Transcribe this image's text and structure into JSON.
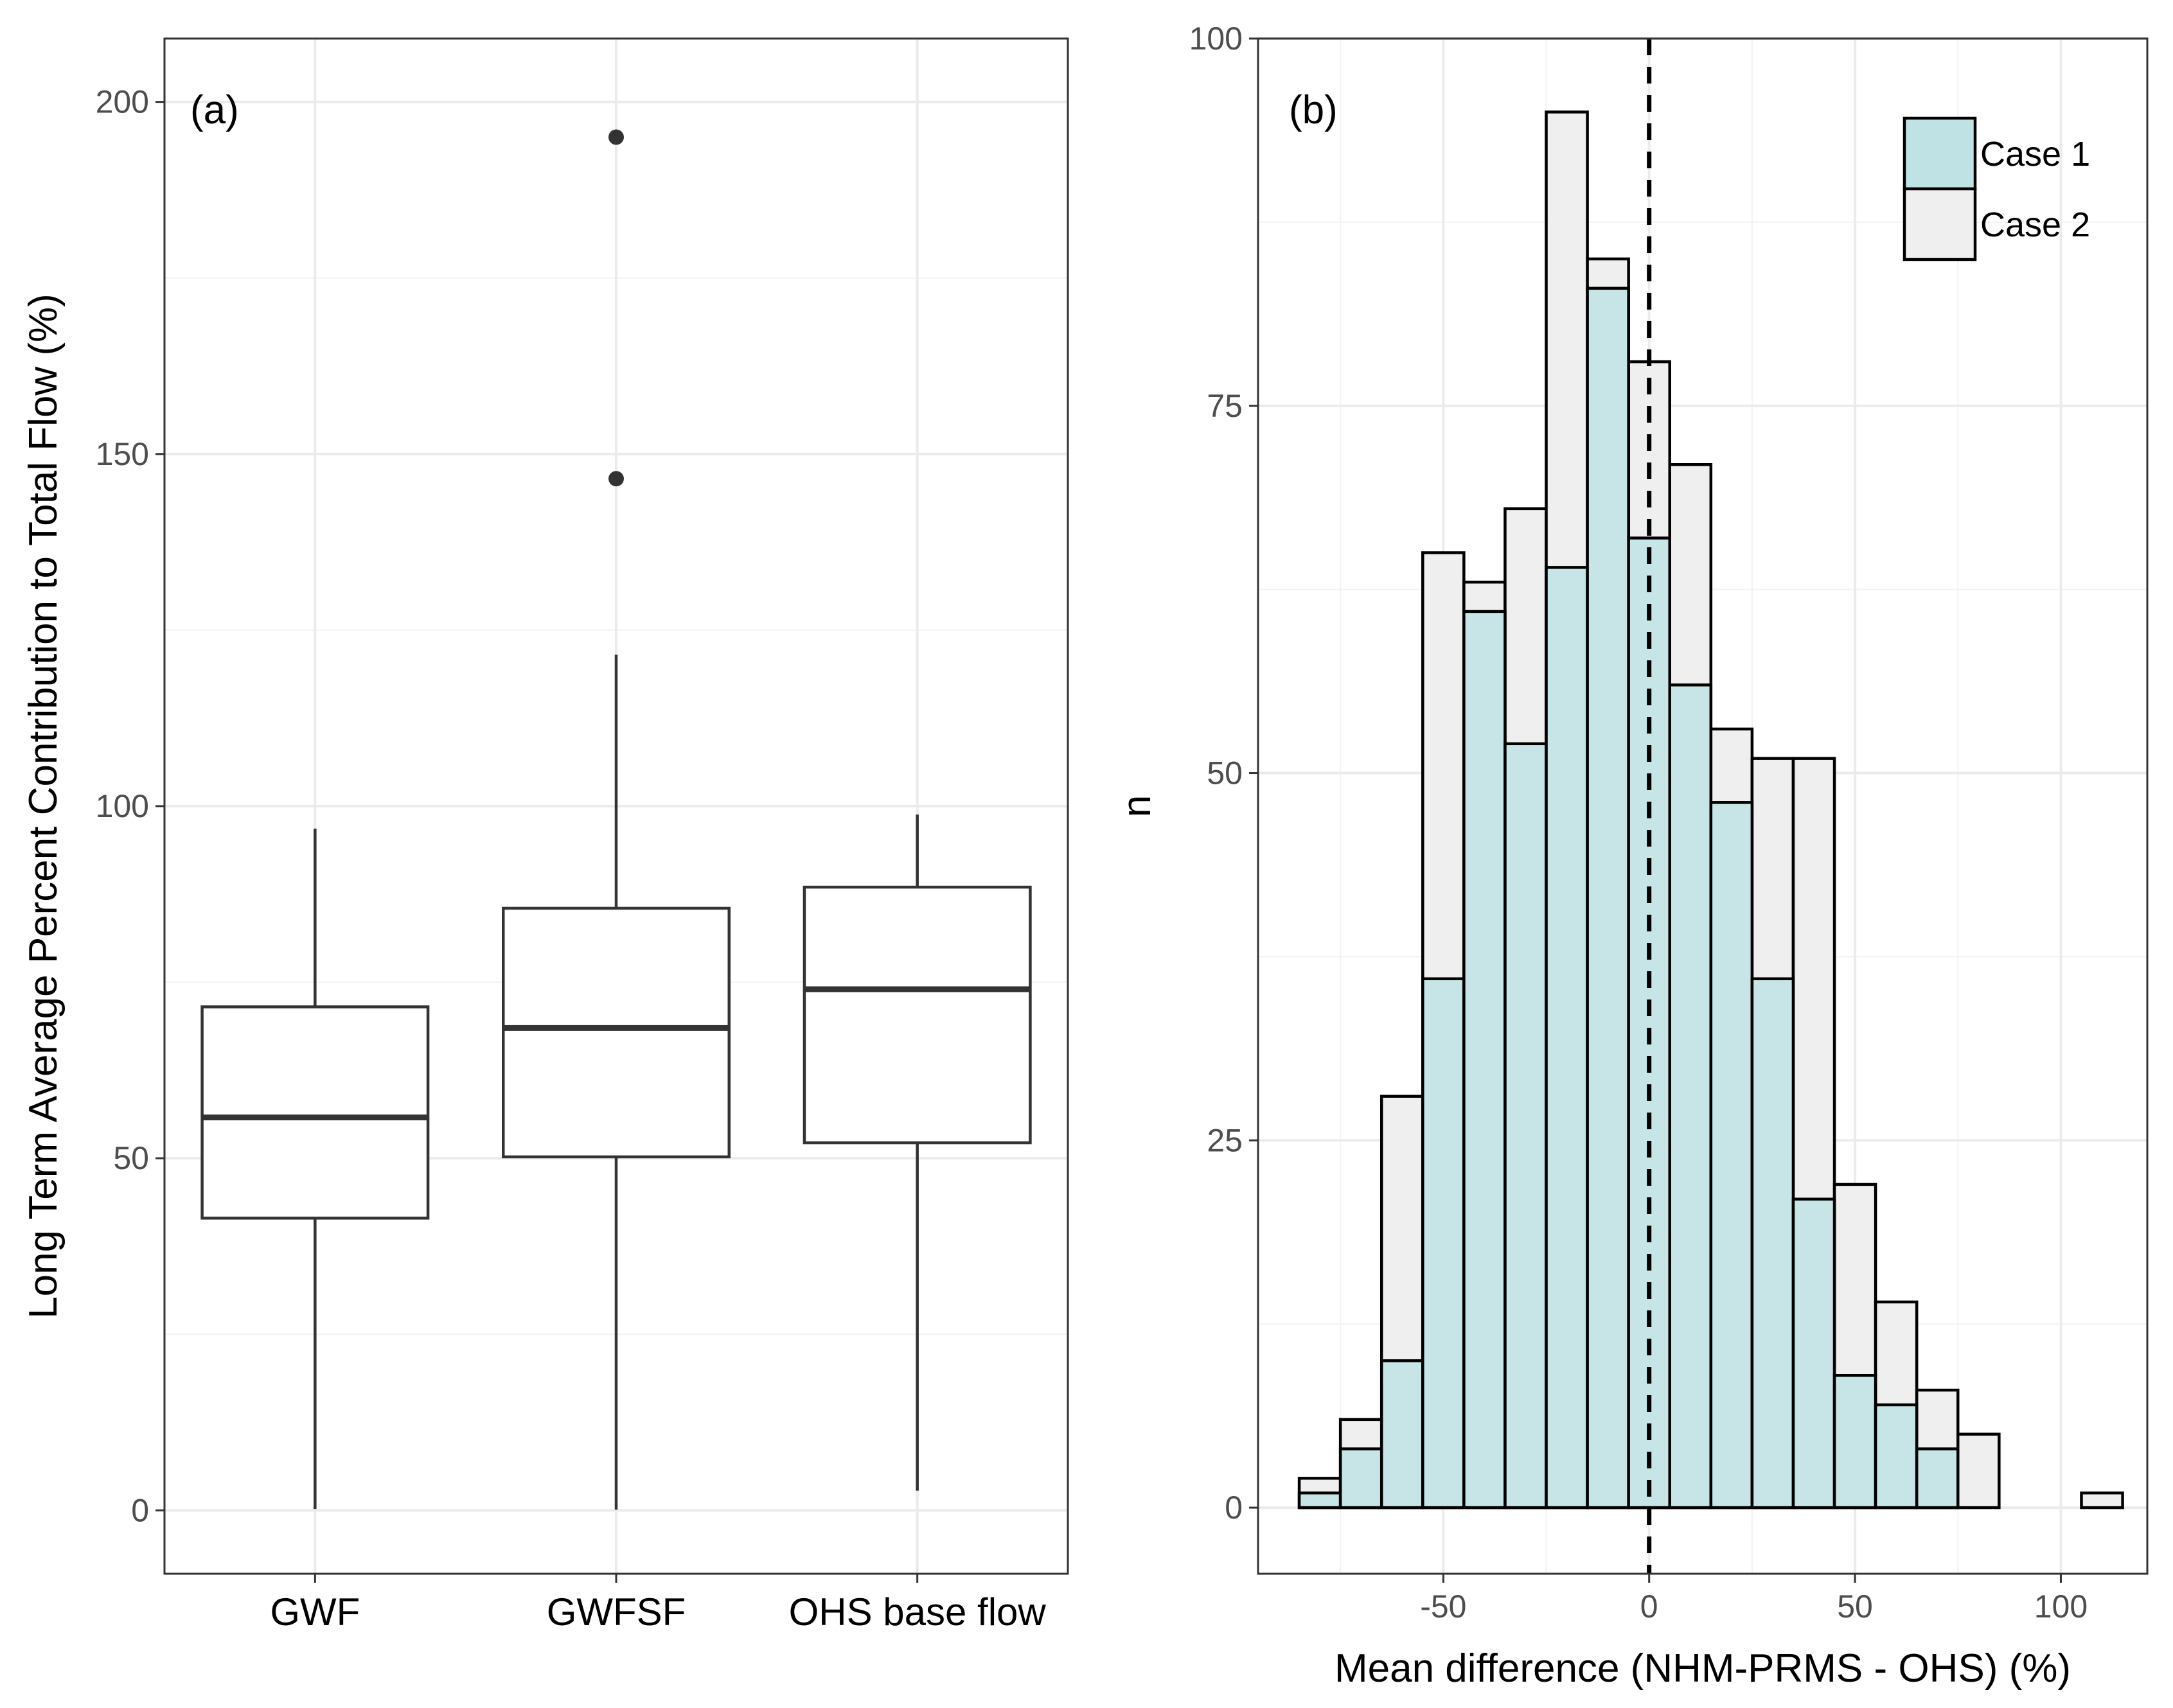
{
  "chart_data": [
    {
      "type": "boxplot",
      "panel_label": "(a)",
      "title": "",
      "xlabel": "",
      "ylabel": "Long Term Average Percent Contribution to Total Flow (%)",
      "ylim": [
        -9,
        209
      ],
      "yticks": [
        0,
        50,
        100,
        150,
        200
      ],
      "categories": [
        "GWF",
        "GWFSF",
        "OHS base flow"
      ],
      "boxes": [
        {
          "name": "GWF",
          "min": 0.2,
          "q1": 41.5,
          "median": 55.8,
          "q3": 71.5,
          "max": 96.8,
          "outliers": []
        },
        {
          "name": "GWFSF",
          "min": 0.1,
          "q1": 50.2,
          "median": 68.5,
          "q3": 85.5,
          "max": 121.5,
          "outliers": [
            146.5,
            195
          ]
        },
        {
          "name": "OHS base flow",
          "min": 2.8,
          "q1": 52.2,
          "median": 74.0,
          "q3": 88.5,
          "max": 98.8,
          "outliers": []
        }
      ],
      "grid": true
    },
    {
      "type": "histogram",
      "panel_label": "(b)",
      "title": "",
      "xlabel": "Mean difference (NHM-PRMS - OHS) (%)",
      "ylabel": "n",
      "xlim": [
        -95,
        121
      ],
      "ylim": [
        -4.5,
        100
      ],
      "xticks": [
        -50,
        0,
        50,
        100
      ],
      "yticks": [
        0,
        25,
        50,
        75,
        100
      ],
      "bin_edges": [
        -85,
        -75,
        -65,
        -55,
        -45,
        -35,
        -25,
        -15,
        -5,
        5,
        15,
        25,
        35,
        45,
        55,
        65,
        75,
        85,
        95,
        105,
        115
      ],
      "series": [
        {
          "name": "Case 1",
          "color": "#bfe3e5",
          "counts": [
            1,
            4,
            10,
            36,
            61,
            52,
            64,
            83,
            66,
            56,
            48,
            36,
            21,
            9,
            7,
            4,
            0,
            0,
            0,
            0
          ]
        },
        {
          "name": "Case 2",
          "color": "#efefef",
          "counts": [
            2,
            6,
            28,
            65,
            63,
            68,
            95,
            85,
            78,
            71,
            53,
            51,
            51,
            22,
            14,
            8,
            5,
            0,
            0,
            1
          ]
        }
      ],
      "reference_line": {
        "x": 0,
        "style": "dashed"
      },
      "legend": {
        "position": "top-right",
        "entries": [
          "Case 1",
          "Case 2"
        ]
      },
      "grid": true
    }
  ]
}
